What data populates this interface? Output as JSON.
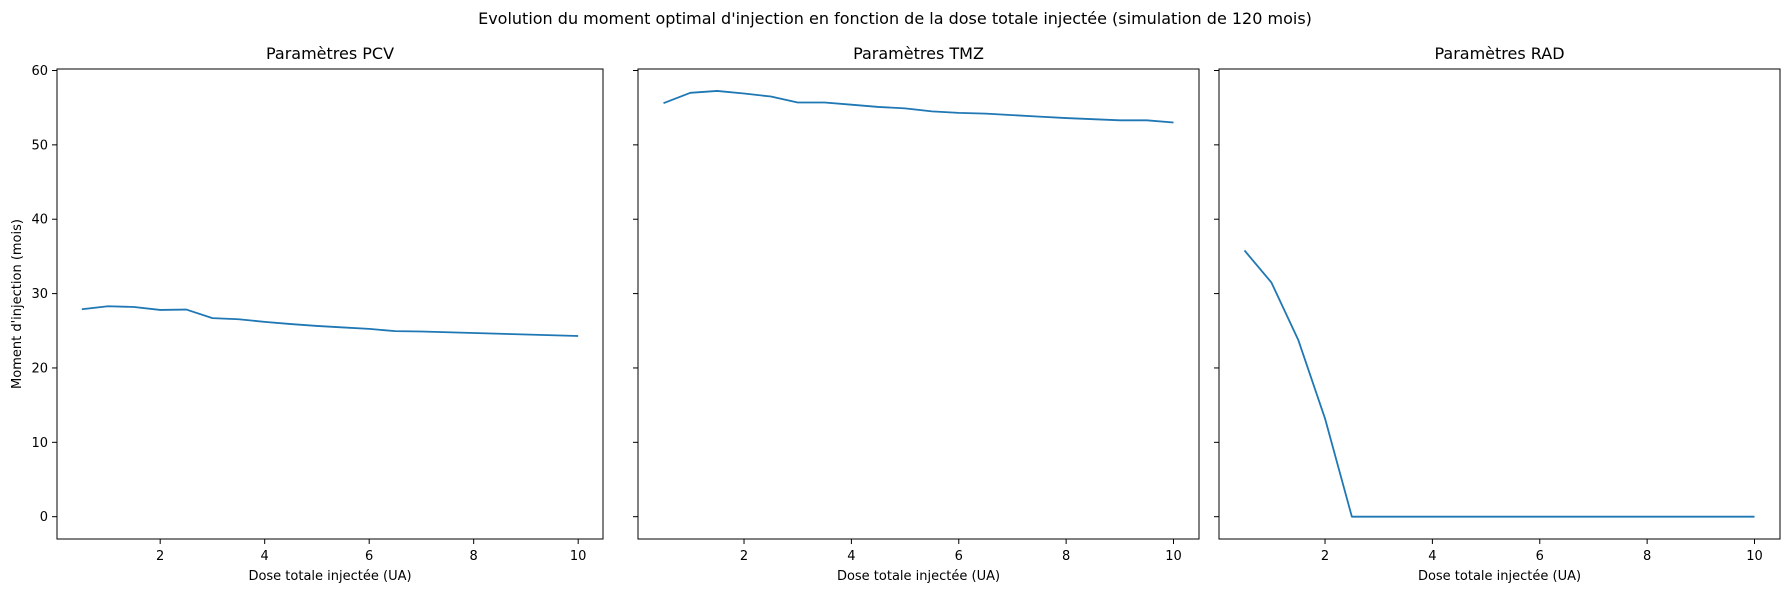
{
  "figure": {
    "title": "Evolution du moment optimal d'injection en fonction de la dose totale injectée (simulation de 120 mois)"
  },
  "chart_data": [
    {
      "type": "line",
      "title": "Paramètres PCV",
      "xlabel": "Dose totale injectée (UA)",
      "ylabel": "Moment d'injection (mois)",
      "xlim": [
        0.025,
        10.475
      ],
      "ylim": [
        -3.0,
        60.2
      ],
      "xticks": [
        2,
        4,
        6,
        8,
        10
      ],
      "yticks": [
        0,
        10,
        20,
        30,
        40,
        50,
        60
      ],
      "show_ytick_labels": true,
      "grid": false,
      "series_color": "#1f77b4",
      "x": [
        0.5,
        1.0,
        1.5,
        2.0,
        2.5,
        3.0,
        3.5,
        4.0,
        4.5,
        5.0,
        5.5,
        6.0,
        6.5,
        7.0,
        7.5,
        8.0,
        8.5,
        9.0,
        9.5,
        10.0
      ],
      "y": [
        27.9,
        28.3,
        28.2,
        27.8,
        27.85,
        26.7,
        26.55,
        26.2,
        25.9,
        25.65,
        25.45,
        25.25,
        24.95,
        24.9,
        24.8,
        24.7,
        24.6,
        24.5,
        24.4,
        24.3
      ]
    },
    {
      "type": "line",
      "title": "Paramètres TMZ",
      "xlabel": "Dose totale injectée (UA)",
      "ylabel": "",
      "xlim": [
        0.025,
        10.475
      ],
      "ylim": [
        -3.0,
        60.2
      ],
      "xticks": [
        2,
        4,
        6,
        8,
        10
      ],
      "yticks": [
        0,
        10,
        20,
        30,
        40,
        50,
        60
      ],
      "show_ytick_labels": false,
      "grid": false,
      "series_color": "#1f77b4",
      "x": [
        0.5,
        1.0,
        1.5,
        2.0,
        2.5,
        3.0,
        3.5,
        4.0,
        4.5,
        5.0,
        5.5,
        6.0,
        6.5,
        7.0,
        7.5,
        8.0,
        8.5,
        9.0,
        9.5,
        10.0
      ],
      "y": [
        55.6,
        57.0,
        57.25,
        56.9,
        56.5,
        55.7,
        55.7,
        55.4,
        55.1,
        54.9,
        54.5,
        54.3,
        54.2,
        54.0,
        53.8,
        53.6,
        53.45,
        53.3,
        53.3,
        53.0
      ]
    },
    {
      "type": "line",
      "title": "Paramètres RAD",
      "xlabel": "Dose totale injectée (UA)",
      "ylabel": "",
      "xlim": [
        0.025,
        10.475
      ],
      "ylim": [
        -3.0,
        60.2
      ],
      "xticks": [
        2,
        4,
        6,
        8,
        10
      ],
      "yticks": [
        0,
        10,
        20,
        30,
        40,
        50,
        60
      ],
      "show_ytick_labels": false,
      "grid": false,
      "series_color": "#1f77b4",
      "x": [
        0.5,
        1.0,
        1.5,
        2.0,
        2.5,
        3.0,
        3.5,
        4.0,
        4.5,
        5.0,
        5.5,
        6.0,
        6.5,
        7.0,
        7.5,
        8.0,
        8.5,
        9.0,
        9.5,
        10.0
      ],
      "y": [
        35.8,
        31.5,
        23.8,
        13.2,
        0,
        0,
        0,
        0,
        0,
        0,
        0,
        0,
        0,
        0,
        0,
        0,
        0,
        0,
        0,
        0
      ]
    }
  ]
}
